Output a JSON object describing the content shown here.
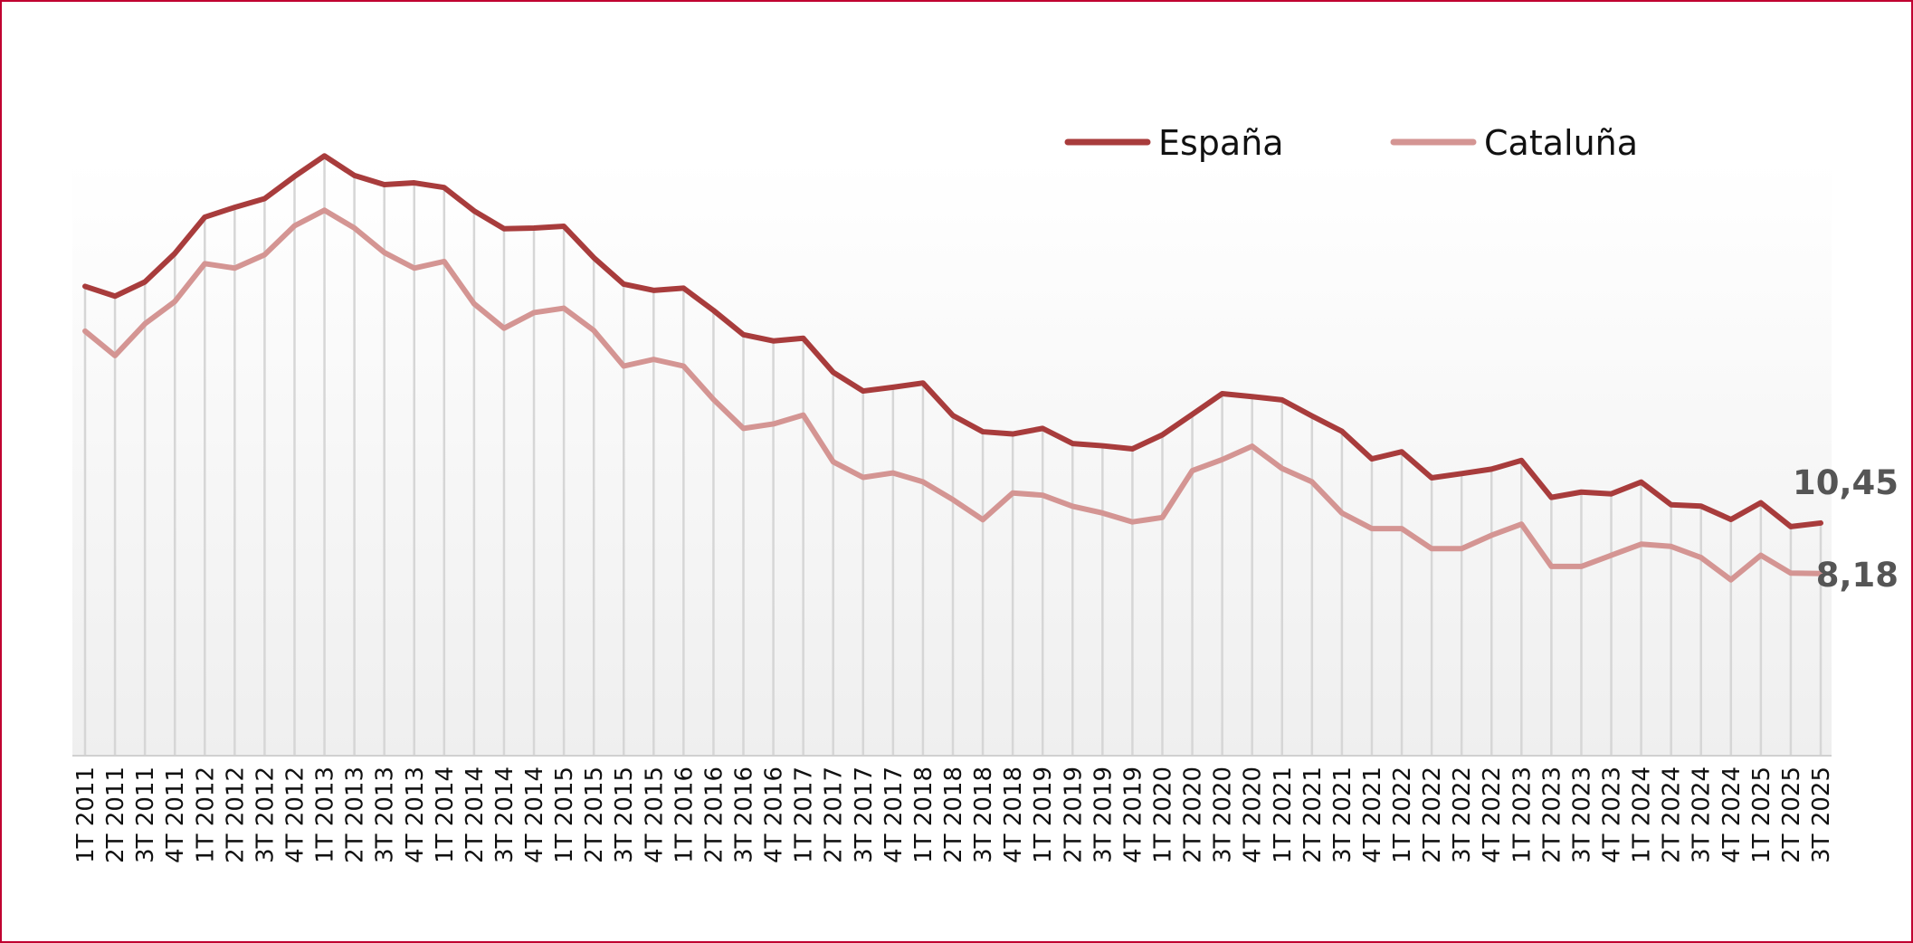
{
  "chart_data": {
    "type": "line",
    "title": "",
    "xlabel": "",
    "ylabel": "",
    "ylim": [
      0,
      28
    ],
    "grid": "vertical",
    "legend_position": "top-right",
    "categories": [
      "1T 2011",
      "2T 2011",
      "3T 2011",
      "4T 2011",
      "1T 2012",
      "2T 2012",
      "3T 2012",
      "4T 2012",
      "1T 2013",
      "2T 2013",
      "3T 2013",
      "4T 2013",
      "1T 2014",
      "2T 2014",
      "3T 2014",
      "4T 2014",
      "1T 2015",
      "2T 2015",
      "3T 2015",
      "4T 2015",
      "1T 2016",
      "2T 2016",
      "3T 2016",
      "4T 2016",
      "1T 2017",
      "2T 2017",
      "3T 2017",
      "4T 2017",
      "1T 2018",
      "2T 2018",
      "3T 2018",
      "4T 2018",
      "1T 2019",
      "2T 2019",
      "3T 2019",
      "4T 2019",
      "1T 2020",
      "2T 2020",
      "3T 2020",
      "4T 2020",
      "1T 2021",
      "2T 2021",
      "3T 2021",
      "4T 2021",
      "1T 2022",
      "2T 2022",
      "3T 2022",
      "4T 2022",
      "1T 2023",
      "2T 2023",
      "3T 2023",
      "4T 2023",
      "1T 2024",
      "2T 2024",
      "3T 2024",
      "4T 2024",
      "1T 2025",
      "2T 2025",
      "3T 2025"
    ],
    "series": [
      {
        "name": "España",
        "color": "#a83c3c",
        "values": [
          21.08,
          20.64,
          21.28,
          22.56,
          24.19,
          24.63,
          25.02,
          26.02,
          26.94,
          26.06,
          25.65,
          25.73,
          25.52,
          24.47,
          23.67,
          23.7,
          23.78,
          22.37,
          21.18,
          20.9,
          21.0,
          20.0,
          18.91,
          18.63,
          18.75,
          17.22,
          16.38,
          16.55,
          16.74,
          15.28,
          14.55,
          14.45,
          14.7,
          14.02,
          13.92,
          13.78,
          14.41,
          15.33,
          16.26,
          16.13,
          15.98,
          15.26,
          14.57,
          13.33,
          13.65,
          12.48,
          12.67,
          12.87,
          13.26,
          11.6,
          11.84,
          11.76,
          12.29,
          11.27,
          11.21,
          10.61,
          11.36,
          10.29,
          10.45
        ],
        "end_label": "10,45"
      },
      {
        "name": "Cataluña",
        "color": "#d49593",
        "values": [
          19.07,
          17.97,
          19.4,
          20.4,
          22.1,
          21.9,
          22.5,
          23.8,
          24.5,
          23.7,
          22.6,
          21.9,
          22.2,
          20.3,
          19.2,
          19.9,
          20.1,
          19.1,
          17.5,
          17.8,
          17.5,
          16.0,
          14.7,
          14.9,
          15.3,
          13.2,
          12.5,
          12.7,
          12.3,
          11.5,
          10.6,
          11.8,
          11.7,
          11.2,
          10.9,
          10.5,
          10.7,
          12.8,
          13.3,
          13.9,
          12.9,
          12.3,
          10.9,
          10.2,
          10.2,
          9.3,
          9.3,
          9.9,
          10.4,
          8.5,
          8.5,
          9.0,
          9.5,
          9.4,
          8.9,
          7.9,
          9.0,
          8.2,
          8.18
        ],
        "end_label": "8,18"
      }
    ]
  }
}
